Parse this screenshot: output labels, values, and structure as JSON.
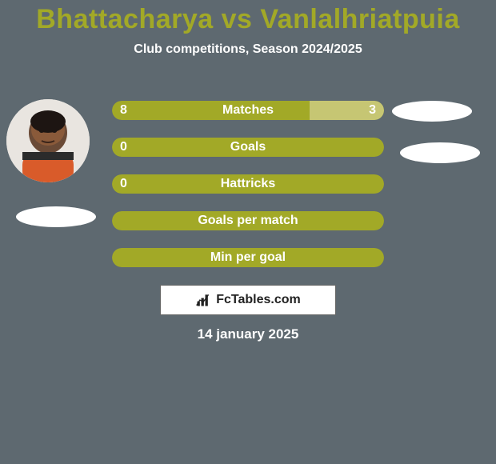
{
  "background_color": "#5e6970",
  "title": {
    "text": "Bhattacharya vs Vanlalhriatpuia",
    "color": "#a2a927",
    "fontsize": 34
  },
  "subtitle": {
    "text": "Club competitions, Season 2024/2025",
    "color": "#ffffff",
    "fontsize": 16
  },
  "bars": {
    "track_color": "#a2a927",
    "segment_right_color": "#c6c673",
    "label_fontsize": 16,
    "value_fontsize": 16,
    "rows": [
      {
        "label": "Matches",
        "left_val": "8",
        "right_val": "3",
        "left_pct": 72.7,
        "right_pct": 27.3
      },
      {
        "label": "Goals",
        "left_val": "0",
        "right_val": "",
        "left_pct": 100,
        "right_pct": 0
      },
      {
        "label": "Hattricks",
        "left_val": "0",
        "right_val": "",
        "left_pct": 100,
        "right_pct": 0
      },
      {
        "label": "Goals per match",
        "left_val": "",
        "right_val": "",
        "left_pct": 100,
        "right_pct": 0
      },
      {
        "label": "Min per goal",
        "left_val": "",
        "right_val": "",
        "left_pct": 100,
        "right_pct": 0
      }
    ]
  },
  "flags": {
    "color": "#ffffff"
  },
  "footer_badge": {
    "text": "FcTables.com",
    "bar_color": "#222222"
  },
  "date": {
    "text": "14 january 2025",
    "color": "#ffffff",
    "fontsize": 17
  }
}
